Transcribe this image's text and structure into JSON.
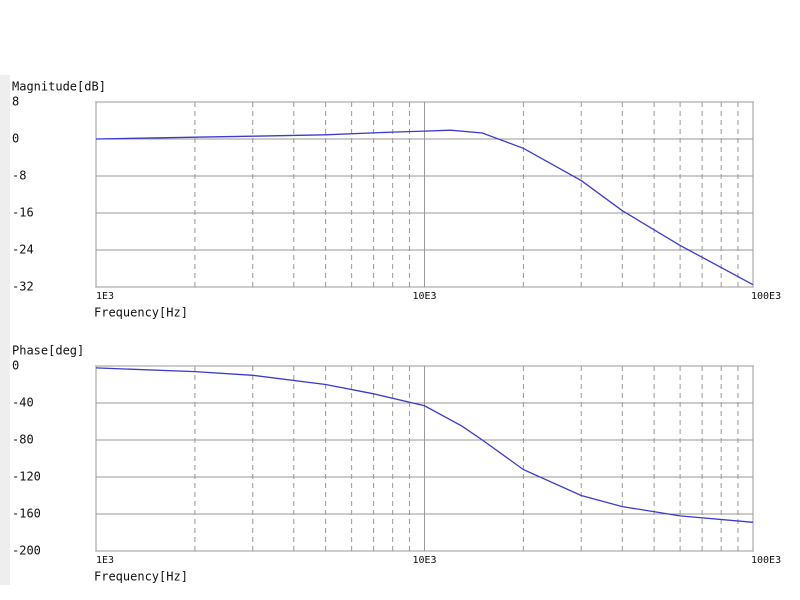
{
  "chart_data": [
    {
      "type": "line",
      "ylabel": "Magnitude[dB]",
      "xlabel": "Frequency[Hz]",
      "color": "#3a3acc",
      "xscale": "log",
      "grid": true,
      "minor_grid": true,
      "x": [
        1000,
        2000,
        3000,
        5000,
        8000,
        10000,
        12000,
        15000,
        20000,
        30000,
        40000,
        60000,
        100000
      ],
      "values": [
        0,
        0.4,
        0.6,
        0.9,
        1.5,
        1.7,
        1.9,
        1.3,
        -2,
        -9,
        -15.5,
        -23,
        -31.5
      ],
      "xlim": [
        1000,
        100000
      ],
      "xticks": [
        {
          "value": 1000,
          "label": "1E3"
        },
        {
          "value": 10000,
          "label": "10E3"
        },
        {
          "value": 100000,
          "label": "100E3"
        }
      ],
      "ylim": [
        -32,
        8
      ],
      "yticks": [
        8,
        0,
        -8,
        -16,
        -24,
        -32
      ]
    },
    {
      "type": "line",
      "ylabel": "Phase[deg]",
      "xlabel": "Frequency[Hz]",
      "color": "#3a3acc",
      "xscale": "log",
      "grid": true,
      "minor_grid": true,
      "x": [
        1000,
        2000,
        3000,
        5000,
        7000,
        10000,
        13000,
        15000,
        20000,
        30000,
        40000,
        60000,
        100000
      ],
      "values": [
        -2,
        -6,
        -10,
        -20,
        -30,
        -43,
        -65,
        -80,
        -112,
        -140,
        -152,
        -162,
        -169
      ],
      "xlim": [
        1000,
        100000
      ],
      "xticks": [
        {
          "value": 1000,
          "label": "1E3"
        },
        {
          "value": 10000,
          "label": "10E3"
        },
        {
          "value": 100000,
          "label": "100E3"
        }
      ],
      "ylim": [
        -200,
        0
      ],
      "yticks": [
        0,
        -40,
        -80,
        -120,
        -160,
        -200
      ]
    }
  ]
}
